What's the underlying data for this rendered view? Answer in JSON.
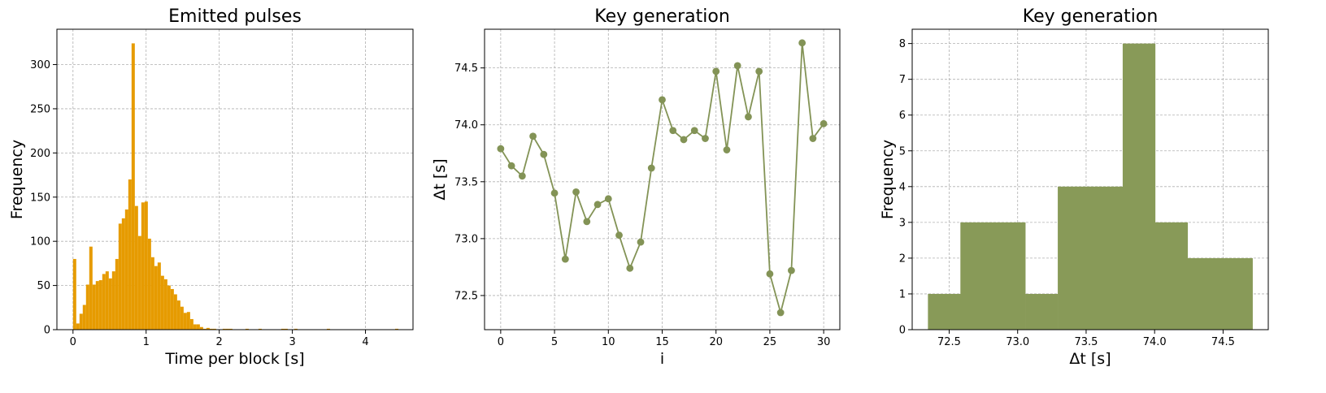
{
  "chart_data": [
    {
      "type": "bar",
      "title": "Emitted pulses",
      "xlabel": "Time per block [s]",
      "ylabel": "Frequency",
      "xlim": [
        -0.22,
        4.65
      ],
      "ylim": [
        0,
        340
      ],
      "xticks": [
        0,
        1,
        2,
        3,
        4
      ],
      "yticks": [
        0,
        50,
        100,
        150,
        200,
        250,
        300
      ],
      "grid": true,
      "color": "#e69b00",
      "bin_start": 0.0,
      "bin_width": 0.0445,
      "values": [
        80,
        7,
        18,
        28,
        51,
        94,
        51,
        55,
        56,
        63,
        66,
        58,
        66,
        80,
        120,
        126,
        136,
        170,
        324,
        140,
        106,
        144,
        145,
        103,
        82,
        72,
        76,
        61,
        57,
        50,
        46,
        40,
        33,
        26,
        19,
        20,
        12,
        6,
        6,
        3,
        1,
        2,
        1,
        1,
        0,
        0,
        1,
        1,
        1,
        0,
        0,
        0,
        0,
        1,
        0,
        0,
        0,
        1,
        0,
        0,
        0,
        0,
        0,
        0,
        1,
        1,
        0,
        0,
        1,
        0,
        0,
        0,
        0,
        0,
        0,
        0,
        0,
        0,
        1,
        0,
        0,
        0,
        0,
        0,
        0,
        0,
        0,
        0,
        0,
        0,
        0,
        0,
        0,
        0,
        0,
        0,
        0,
        0,
        0,
        1
      ]
    },
    {
      "type": "line",
      "title": "Key generation",
      "xlabel": "i",
      "ylabel": "Δt [s]",
      "xlim": [
        -1.5,
        31.5
      ],
      "ylim": [
        72.2,
        74.84
      ],
      "xticks": [
        0,
        5,
        10,
        15,
        20,
        25,
        30
      ],
      "yticks": [
        72.5,
        73.0,
        73.5,
        74.0,
        74.5
      ],
      "ytick_labels": [
        "72.5",
        "73.0",
        "73.5",
        "74.0",
        "74.5"
      ],
      "grid": true,
      "color": "#839356",
      "x": [
        0,
        1,
        2,
        3,
        4,
        5,
        6,
        7,
        8,
        9,
        10,
        11,
        12,
        13,
        14,
        15,
        16,
        17,
        18,
        19,
        20,
        21,
        22,
        23,
        24,
        25,
        26,
        27,
        28,
        29,
        30
      ],
      "y": [
        73.79,
        73.64,
        73.55,
        73.9,
        73.74,
        73.4,
        72.82,
        73.41,
        73.15,
        73.3,
        73.35,
        73.03,
        72.74,
        72.97,
        73.62,
        74.22,
        73.95,
        73.87,
        73.95,
        73.88,
        74.47,
        73.78,
        74.52,
        74.07,
        74.47,
        72.69,
        72.35,
        72.72,
        74.72,
        73.88,
        74.01
      ]
    },
    {
      "type": "bar",
      "title": "Key generation",
      "xlabel": "Δt [s]",
      "ylabel": "Frequency",
      "xlim": [
        72.23,
        74.83
      ],
      "ylim": [
        0,
        8.4
      ],
      "xticks": [
        72.5,
        73.0,
        73.5,
        74.0,
        74.5
      ],
      "xtick_labels": [
        "72.5",
        "73.0",
        "73.5",
        "74.0",
        "74.5"
      ],
      "yticks": [
        0,
        1,
        2,
        3,
        4,
        5,
        6,
        7,
        8
      ],
      "grid": true,
      "color": "#889a58",
      "bin_edges": [
        72.345,
        72.582,
        72.819,
        73.056,
        73.293,
        73.53,
        73.767,
        74.004,
        74.241,
        74.478,
        74.715
      ],
      "values": [
        1,
        3,
        3,
        1,
        4,
        4,
        8,
        3,
        2,
        2
      ]
    }
  ]
}
